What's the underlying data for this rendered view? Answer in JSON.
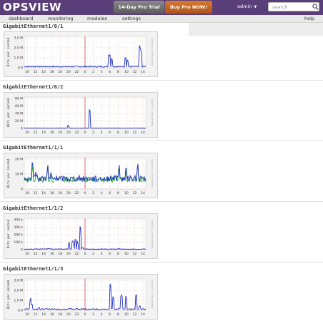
{
  "app": {
    "logo": "OPSVIEW",
    "trial_button": "14-Day Pro Trial",
    "buy_button": "Buy Pro NOW!",
    "user": "admin",
    "search_placeholder": "search",
    "icons": [
      "search-icon",
      "chevron-down-icon"
    ]
  },
  "nav": {
    "items": [
      "dashboard",
      "monitoring",
      "modules",
      "settings"
    ],
    "help": "help"
  },
  "colors": {
    "topbar": "#5a3e7a",
    "trial": "#6e6e6e",
    "buy": "#c8662a",
    "series_in": "#1a2dc4",
    "series_out": "#22b322",
    "marker": "#cc3333"
  },
  "graphs": [
    {
      "title": "GigabitEthernet1/0/1",
      "ylabel": "Bits per second",
      "side_label": "RRDTOOL / TOBI OETIKER",
      "yticks": [
        "0.0",
        "1.0 M",
        "2.0 M",
        "3.0 M"
      ],
      "xticks": [
        "10",
        "12",
        "14",
        "16",
        "18",
        "20",
        "22",
        "0",
        "2",
        "4",
        "6",
        "8",
        "10",
        "12",
        "14"
      ]
    },
    {
      "title": "GigabitEthernet1/0/2",
      "ylabel": "Bits per second",
      "side_label": "RRDTOOL / TOBI OETIKER",
      "yticks": [
        "0",
        "20 M",
        "40 M",
        "60 M",
        "80 M"
      ],
      "xticks": [
        "10",
        "12",
        "14",
        "16",
        "18",
        "20",
        "22",
        "0",
        "2",
        "4",
        "6",
        "8",
        "10",
        "12",
        "14"
      ]
    },
    {
      "title": "GigabitEthernet1/1/1",
      "ylabel": "Bits per second",
      "side_label": "RRDTOOL / TOBI OETIKER",
      "yticks": [
        "0",
        "10 M",
        "20 M"
      ],
      "xticks": [
        "10",
        "12",
        "14",
        "16",
        "18",
        "20",
        "22",
        "0",
        "2",
        "4",
        "6",
        "8",
        "10",
        "12",
        "14"
      ]
    },
    {
      "title": "GigabitEthernet1/1/2",
      "ylabel": "Bits per second",
      "side_label": "RRDTOOL / TOBI OETIKER",
      "yticks": [
        "0",
        "100 k",
        "200 k",
        "300 k",
        "400 k"
      ],
      "xticks": [
        "10",
        "12",
        "14",
        "16",
        "18",
        "20",
        "22",
        "0",
        "2",
        "4",
        "6",
        "8",
        "10",
        "12",
        "14"
      ]
    },
    {
      "title": "GigabitEthernet1/1/3",
      "ylabel": "Bits per second",
      "side_label": "RRDTOOL / TOBI OETIKER",
      "yticks": [
        "0.0",
        "1.0 M",
        "2.0 M",
        "3.0 M"
      ],
      "xticks": [
        "10",
        "12",
        "14",
        "16",
        "18",
        "20",
        "22",
        "0",
        "2",
        "4",
        "6",
        "8",
        "10",
        "12",
        "14"
      ]
    }
  ]
}
